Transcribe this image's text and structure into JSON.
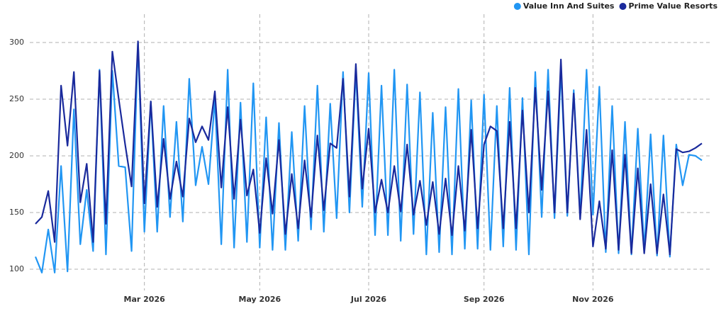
{
  "chart_data": {
    "type": "line",
    "categories": [
      null,
      null,
      null,
      null,
      null,
      null,
      null,
      null,
      null,
      null,
      null,
      null,
      null,
      null,
      null,
      null,
      null,
      "Mar 2026",
      null,
      null,
      null,
      null,
      null,
      null,
      null,
      null,
      null,
      null,
      null,
      null,
      null,
      null,
      null,
      null,
      null,
      "May 2026",
      null,
      null,
      null,
      null,
      null,
      null,
      null,
      null,
      null,
      null,
      null,
      null,
      null,
      null,
      null,
      null,
      "Jul 2026",
      null,
      null,
      null,
      null,
      null,
      null,
      null,
      null,
      null,
      null,
      null,
      null,
      null,
      null,
      null,
      null,
      null,
      "Sep 2026",
      null,
      null,
      null,
      null,
      null,
      null,
      null,
      null,
      null,
      null,
      null,
      null,
      null,
      null,
      null,
      null,
      "Nov 2026",
      null,
      null,
      null,
      null,
      null,
      null,
      null,
      null,
      null,
      null,
      null,
      null,
      null,
      null,
      null,
      null,
      null
    ],
    "series": [
      {
        "name": "Value Inn And Suites",
        "color": "#2196f3",
        "values": [
          111,
          97,
          135,
          97,
          191,
          98,
          241,
          122,
          170,
          116,
          276,
          113,
          275,
          191,
          190,
          116,
          300,
          133,
          248,
          133,
          244,
          146,
          230,
          142,
          268,
          174,
          208,
          175,
          250,
          122,
          276,
          119,
          247,
          124,
          264,
          119,
          234,
          117,
          229,
          117,
          221,
          125,
          244,
          135,
          262,
          133,
          246,
          145,
          274,
          150,
          275,
          155,
          273,
          130,
          262,
          130,
          276,
          125,
          263,
          131,
          256,
          113,
          238,
          115,
          243,
          113,
          259,
          118,
          249,
          118,
          254,
          117,
          244,
          120,
          260,
          117,
          251,
          113,
          274,
          146,
          276,
          145,
          276,
          147,
          258,
          147,
          276,
          148,
          261,
          115,
          244,
          114,
          230,
          113,
          224,
          117,
          219,
          112,
          218,
          111,
          210,
          174,
          201,
          200,
          196
        ]
      },
      {
        "name": "Prime Value Resorts",
        "color": "#1a2a9c",
        "values": [
          140,
          146,
          169,
          124,
          262,
          209,
          274,
          159,
          193,
          124,
          275,
          140,
          292,
          250,
          210,
          173,
          301,
          158,
          248,
          155,
          215,
          162,
          195,
          164,
          233,
          212,
          226,
          214,
          257,
          172,
          243,
          162,
          232,
          165,
          188,
          132,
          198,
          149,
          214,
          131,
          184,
          136,
          196,
          146,
          218,
          152,
          211,
          207,
          268,
          164,
          281,
          171,
          224,
          150,
          179,
          150,
          191,
          151,
          210,
          148,
          178,
          139,
          177,
          131,
          180,
          130,
          191,
          134,
          223,
          136,
          210,
          226,
          222,
          136,
          230,
          136,
          240,
          150,
          260,
          170,
          257,
          150,
          285,
          150,
          255,
          144,
          223,
          120,
          160,
          118,
          205,
          117,
          201,
          114,
          189,
          114,
          175,
          114,
          166,
          113,
          206,
          203,
          204,
          207,
          211
        ]
      }
    ],
    "ylim": [
      90,
      325
    ],
    "yticks": [
      100,
      150,
      200,
      250,
      300
    ],
    "grid": true,
    "legend": "top-right"
  }
}
